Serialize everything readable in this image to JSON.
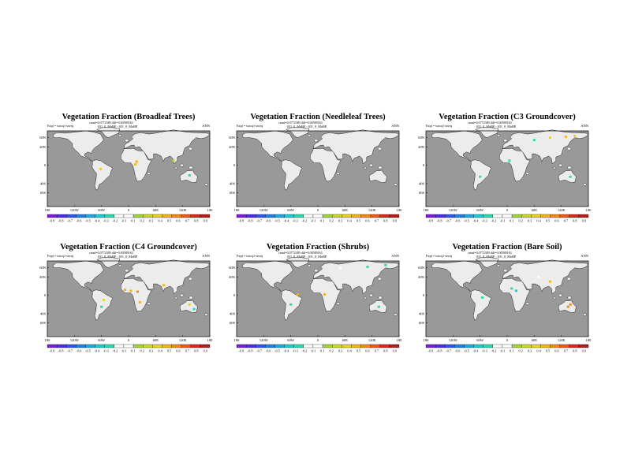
{
  "figure": {
    "colorbar_colors": [
      "#7b1fd4",
      "#4b2fe0",
      "#2f55e6",
      "#1f7fe6",
      "#1fa6e0",
      "#1fc8d0",
      "#2fd6b0",
      "#ffffff",
      "#ffffff",
      "#a0d43a",
      "#c8d82a",
      "#e6d21f",
      "#f0b41f",
      "#f08a1f",
      "#ea5a1f",
      "#d42a1f",
      "#b01f1f"
    ],
    "ocean_color": "#999999",
    "land_color": "#ececec"
  },
  "chart_data": [
    {
      "type": "heatmap",
      "title": "Vegetation Fraction (Broadleaf Trees)",
      "rmse_label": "rmsd=0.0772389 diff=0.00589163",
      "expt_label": "Expt = turcq1-tavrq",
      "run_label": "031_0_MoBF - 031_0_MoBP",
      "period": "ANN",
      "lat_ticks": [
        "60N",
        "40N",
        "0",
        "40S",
        "60S"
      ],
      "lon_ticks": [
        "180",
        "120W",
        "60W",
        "0",
        "60E",
        "120E",
        "180"
      ],
      "colorbar_labels": [
        "-0.9",
        "-0.8",
        "-0.7",
        "-0.6",
        "-0.5",
        "-0.4",
        "-0.3",
        "-0.2",
        "-0.1",
        "0.1",
        "0.2",
        "0.3",
        "0.4",
        "0.5",
        "0.6",
        "0.7",
        "0.8",
        "0.9"
      ],
      "spots": [
        {
          "lon": -62,
          "lat": -8,
          "value": 0.25
        },
        {
          "lon": 15,
          "lat": 2,
          "value": 0.3
        },
        {
          "lon": 18,
          "lat": 8,
          "value": 0.35
        },
        {
          "lon": 135,
          "lat": -22,
          "value": -0.3
        },
        {
          "lon": 100,
          "lat": 10,
          "value": 0.1
        }
      ]
    },
    {
      "type": "heatmap",
      "title": "Vegetation Fraction (Needleleaf Trees)",
      "rmse_label": "rmsd=0.0772389 diff=0.00589163",
      "expt_label": "Expt = turcq1-tavrq",
      "run_label": "031_0_MoBF - 031_0_MoBP",
      "period": "ANN",
      "lat_ticks": [
        "60N",
        "40N",
        "0",
        "40S",
        "60S"
      ],
      "lon_ticks": [
        "180",
        "120W",
        "60W",
        "0",
        "60E",
        "120E",
        "180"
      ],
      "colorbar_labels": [
        "-0.9",
        "-0.8",
        "-0.7",
        "-0.6",
        "-0.5",
        "-0.4",
        "-0.3",
        "-0.2",
        "-0.1",
        "0.1",
        "0.2",
        "0.3",
        "0.4",
        "0.5",
        "0.6",
        "0.7",
        "0.8",
        "0.9"
      ],
      "spots": []
    },
    {
      "type": "heatmap",
      "title": "Vegetation Fraction (C3 Groundcover)",
      "rmse_label": "rmsd=0.0772389 diff=0.00589163",
      "expt_label": "Expt = turcq1-tavrq",
      "run_label": "031_0_MoBF - 031_0_MoBP",
      "period": "ANN",
      "lat_ticks": [
        "60N",
        "40N",
        "0",
        "40S",
        "60S"
      ],
      "lon_ticks": [
        "180",
        "120W",
        "60W",
        "0",
        "60E",
        "120E",
        "180"
      ],
      "colorbar_labels": [
        "-0.9",
        "-0.8",
        "-0.7",
        "-0.6",
        "-0.5",
        "-0.4",
        "-0.3",
        "-0.2",
        "-0.1",
        "0.1",
        "0.2",
        "0.3",
        "0.4",
        "0.5",
        "0.6",
        "0.7",
        "0.8",
        "0.9"
      ],
      "spots": [
        {
          "lon": 95,
          "lat": 60,
          "value": 0.25
        },
        {
          "lon": 130,
          "lat": 62,
          "value": 0.3
        },
        {
          "lon": 150,
          "lat": 64,
          "value": 0.2
        },
        {
          "lon": 60,
          "lat": 55,
          "value": -0.3
        },
        {
          "lon": 140,
          "lat": -25,
          "value": -0.3
        },
        {
          "lon": -60,
          "lat": -25,
          "value": -0.25
        },
        {
          "lon": 5,
          "lat": 10,
          "value": -0.3
        }
      ]
    },
    {
      "type": "heatmap",
      "title": "Vegetation Fraction (C4 Groundcover)",
      "rmse_label": "rmsd=0.0772389 diff=0.00589163",
      "expt_label": "Expt = turcq1-tavrq",
      "run_label": "031_0_MoBF - 031_0_MoBP",
      "period": "ANN",
      "lat_ticks": [
        "60N",
        "40N",
        "0",
        "40S",
        "60S"
      ],
      "lon_ticks": [
        "180",
        "120W",
        "60W",
        "0",
        "60E",
        "120E",
        "180"
      ],
      "colorbar_labels": [
        "-0.9",
        "-0.8",
        "-0.7",
        "-0.6",
        "-0.5",
        "-0.4",
        "-0.3",
        "-0.2",
        "-0.1",
        "0.1",
        "0.2",
        "0.3",
        "0.4",
        "0.5",
        "0.6",
        "0.7",
        "0.8",
        "0.9"
      ],
      "spots": [
        {
          "lon": -8,
          "lat": 12,
          "value": 0.3
        },
        {
          "lon": 5,
          "lat": 10,
          "value": 0.35
        },
        {
          "lon": 20,
          "lat": 8,
          "value": 0.4
        },
        {
          "lon": 25,
          "lat": -15,
          "value": 0.3
        },
        {
          "lon": -55,
          "lat": -10,
          "value": 0.25
        },
        {
          "lon": -60,
          "lat": -25,
          "value": -0.3
        },
        {
          "lon": 78,
          "lat": 22,
          "value": 0.3
        },
        {
          "lon": 135,
          "lat": -20,
          "value": 0.25
        },
        {
          "lon": 145,
          "lat": -30,
          "value": -0.3
        }
      ]
    },
    {
      "type": "heatmap",
      "title": "Vegetation Fraction (Shrubs)",
      "rmse_label": "rmsd=0.0772389 diff=0.00589163",
      "expt_label": "Expt = turcq1-tavrq",
      "run_label": "031_0_MoBF - 031_0_MoBP",
      "period": "ANN",
      "lat_ticks": [
        "60N",
        "40N",
        "0",
        "40S",
        "60S"
      ],
      "lon_ticks": [
        "180",
        "120W",
        "60W",
        "0",
        "60E",
        "120E",
        "180"
      ],
      "colorbar_labels": [
        "-0.9",
        "-0.8",
        "-0.7",
        "-0.6",
        "-0.5",
        "-0.4",
        "-0.3",
        "-0.2",
        "-0.1",
        "0.1",
        "0.2",
        "0.3",
        "0.4",
        "0.5",
        "0.6",
        "0.7",
        "0.8",
        "0.9"
      ],
      "spots": [
        {
          "lon": 150,
          "lat": 66,
          "value": -0.3
        },
        {
          "lon": 110,
          "lat": 62,
          "value": -0.25
        },
        {
          "lon": 50,
          "lat": 60,
          "value": -0.2
        },
        {
          "lon": 15,
          "lat": 2,
          "value": 0.3
        },
        {
          "lon": 135,
          "lat": -25,
          "value": -0.3
        },
        {
          "lon": -60,
          "lat": -20,
          "value": -0.25
        },
        {
          "lon": -45,
          "lat": 2,
          "value": 0.3
        }
      ]
    },
    {
      "type": "heatmap",
      "title": "Vegetation Fraction (Bare Soil)",
      "rmse_label": "rmsd=0.0772389 diff=0.00589163",
      "expt_label": "Expt = turcq1-tavrq",
      "run_label": "031_0_MoBF - 031_0_MoBP",
      "period": "ANN",
      "lat_ticks": [
        "60N",
        "40N",
        "0",
        "40S",
        "60S"
      ],
      "lon_ticks": [
        "180",
        "120W",
        "60W",
        "0",
        "60E",
        "120E",
        "180"
      ],
      "colorbar_labels": [
        "-0.9",
        "-0.8",
        "-0.7",
        "-0.6",
        "-0.5",
        "-0.4",
        "-0.3",
        "-0.2",
        "-0.1",
        "0.1",
        "0.2",
        "0.3",
        "0.4",
        "0.5",
        "0.6",
        "0.7",
        "0.8",
        "0.9"
      ],
      "spots": [
        {
          "lon": 135,
          "lat": -25,
          "value": 0.45
        },
        {
          "lon": 140,
          "lat": -20,
          "value": 0.4
        },
        {
          "lon": 10,
          "lat": 15,
          "value": -0.3
        },
        {
          "lon": 20,
          "lat": 10,
          "value": -0.35
        },
        {
          "lon": -55,
          "lat": -5,
          "value": -0.3
        },
        {
          "lon": 70,
          "lat": 40,
          "value": -0.2
        },
        {
          "lon": 95,
          "lat": 30,
          "value": 0.3
        }
      ]
    }
  ]
}
